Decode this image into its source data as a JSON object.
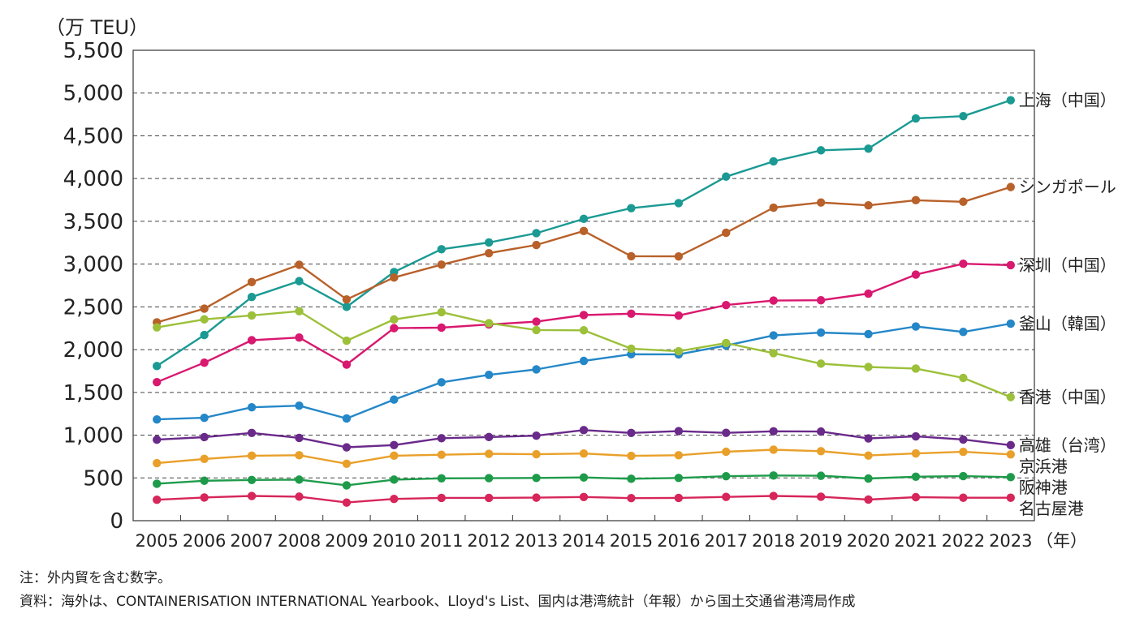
{
  "chart_data": {
    "type": "line",
    "unit_label": "（万 TEU）",
    "x_suffix": "（年）",
    "categories": [
      "2005",
      "2006",
      "2007",
      "2008",
      "2009",
      "2010",
      "2011",
      "2012",
      "2013",
      "2014",
      "2015",
      "2016",
      "2017",
      "2018",
      "2019",
      "2020",
      "2021",
      "2022",
      "2023"
    ],
    "ylim": [
      0,
      5500
    ],
    "yticks": [
      0,
      500,
      1000,
      1500,
      2000,
      2500,
      3000,
      3500,
      4000,
      4500,
      5000,
      5500
    ],
    "ytick_labels": [
      "0",
      "500",
      "1,000",
      "1,500",
      "2,000",
      "2,500",
      "3,000",
      "3,500",
      "4,000",
      "4,500",
      "5,000",
      "5,500"
    ],
    "grid": "horizontal-dashed",
    "series": [
      {
        "name": "上海（中国）",
        "color": "#1a9a93",
        "values": [
          1808,
          2171,
          2615,
          2801,
          2500,
          2907,
          3174,
          3253,
          3362,
          3529,
          3654,
          3713,
          4023,
          4201,
          4330,
          4350,
          4703,
          4730,
          4916
        ]
      },
      {
        "name": "シンガポール",
        "color": "#b8612a",
        "values": [
          2319,
          2479,
          2790,
          2992,
          2587,
          2843,
          2994,
          3128,
          3224,
          3387,
          3092,
          3090,
          3367,
          3660,
          3720,
          3687,
          3747,
          3729,
          3901
        ]
      },
      {
        "name": "深圳（中国）",
        "color": "#d9186f",
        "values": [
          1620,
          1847,
          2110,
          2141,
          1825,
          2251,
          2257,
          2294,
          2327,
          2404,
          2420,
          2398,
          2521,
          2574,
          2577,
          2655,
          2877,
          3004,
          2988
        ]
      },
      {
        "name": "釜山（韓国）",
        "color": "#2487c8",
        "values": [
          1184,
          1203,
          1326,
          1345,
          1195,
          1416,
          1618,
          1705,
          1769,
          1868,
          1946,
          1945,
          2047,
          2166,
          2199,
          2182,
          2271,
          2207,
          2304
        ]
      },
      {
        "name": "香港（中国）",
        "color": "#9cc03a",
        "values": [
          2260,
          2354,
          2400,
          2449,
          2104,
          2353,
          2438,
          2310,
          2229,
          2226,
          2011,
          1981,
          2077,
          1959,
          1836,
          1797,
          1779,
          1669,
          1445
        ]
      },
      {
        "name": "高雄（台湾）",
        "color": "#6a2a8a",
        "values": [
          947,
          977,
          1026,
          968,
          858,
          884,
          964,
          978,
          994,
          1059,
          1026,
          1047,
          1027,
          1045,
          1042,
          962,
          986,
          949,
          883
        ]
      },
      {
        "name": "京浜港",
        "color": "#e9a02a",
        "values": [
          673,
          722,
          760,
          765,
          666,
          760,
          771,
          782,
          777,
          785,
          758,
          765,
          806,
          830,
          813,
          762,
          786,
          805,
          775
        ]
      },
      {
        "name": "阪神港",
        "color": "#1e9b4a",
        "values": [
          432,
          467,
          476,
          480,
          413,
          480,
          495,
          497,
          500,
          505,
          490,
          500,
          520,
          528,
          525,
          493,
          514,
          521,
          509
        ]
      },
      {
        "name": "名古屋港",
        "color": "#d6265a",
        "values": [
          245,
          271,
          289,
          281,
          212,
          254,
          266,
          266,
          269,
          277,
          264,
          266,
          278,
          289,
          280,
          247,
          275,
          268,
          268
        ]
      }
    ]
  },
  "notes": {
    "note1": "注：外内貿を含む数字。",
    "note2": "資料：海外は、CONTAINERISATION INTERNATIONAL Yearbook、Lloyd's List、国内は港湾統計（年報）から国土交通省港湾局作成"
  }
}
